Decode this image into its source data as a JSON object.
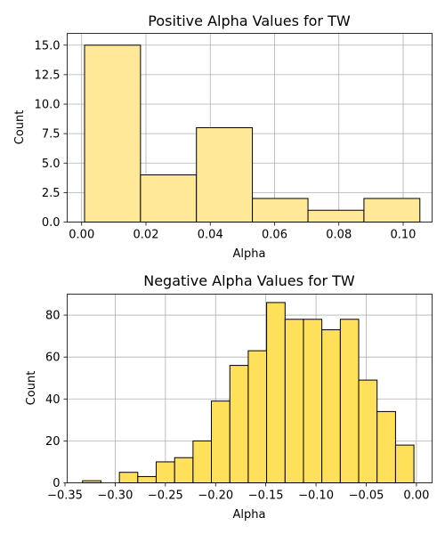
{
  "chart_data": [
    {
      "type": "bar",
      "title": "Positive Alpha Values for TW",
      "xlabel": "Alpha",
      "ylabel": "Count",
      "bar_color": "#ffe897",
      "grid": true,
      "xlim": [
        -0.0045,
        0.109
      ],
      "ylim": [
        0,
        16
      ],
      "xticks": [
        "0.00",
        "0.02",
        "0.04",
        "0.06",
        "0.08",
        "0.10"
      ],
      "xtick_values": [
        0.0,
        0.02,
        0.04,
        0.06,
        0.08,
        0.1
      ],
      "yticks": [
        "0.0",
        "2.5",
        "5.0",
        "7.5",
        "10.0",
        "12.5",
        "15.0"
      ],
      "ytick_values": [
        0,
        2.5,
        5,
        7.5,
        10,
        12.5,
        15
      ],
      "bins": [
        {
          "x0": 0.0009,
          "x1": 0.0183,
          "count": 15
        },
        {
          "x0": 0.0183,
          "x1": 0.0357,
          "count": 4
        },
        {
          "x0": 0.0357,
          "x1": 0.0531,
          "count": 8
        },
        {
          "x0": 0.0531,
          "x1": 0.0704,
          "count": 2
        },
        {
          "x0": 0.0704,
          "x1": 0.0878,
          "count": 1
        },
        {
          "x0": 0.0878,
          "x1": 0.1052,
          "count": 2
        }
      ]
    },
    {
      "type": "bar",
      "title": "Negative Alpha Values for TW",
      "xlabel": "Alpha",
      "ylabel": "Count",
      "bar_color": "#ffe05a",
      "grid": true,
      "xlim": [
        -0.3478,
        0.0156
      ],
      "ylim": [
        0,
        90
      ],
      "xticks": [
        "−0.35",
        "−0.30",
        "−0.25",
        "−0.20",
        "−0.15",
        "−0.10",
        "−0.05",
        "0.00"
      ],
      "xtick_values": [
        -0.35,
        -0.3,
        -0.25,
        -0.2,
        -0.15,
        -0.1,
        -0.05,
        0.0
      ],
      "yticks": [
        "0",
        "20",
        "40",
        "60",
        "80"
      ],
      "ytick_values": [
        0,
        20,
        40,
        60,
        80
      ],
      "bins": [
        {
          "x0": -0.3325,
          "x1": -0.3142,
          "count": 1
        },
        {
          "x0": -0.3142,
          "x1": -0.2958,
          "count": 0
        },
        {
          "x0": -0.2958,
          "x1": -0.2775,
          "count": 5
        },
        {
          "x0": -0.2775,
          "x1": -0.2592,
          "count": 3
        },
        {
          "x0": -0.2592,
          "x1": -0.2408,
          "count": 10
        },
        {
          "x0": -0.2408,
          "x1": -0.2225,
          "count": 12
        },
        {
          "x0": -0.2225,
          "x1": -0.2042,
          "count": 20
        },
        {
          "x0": -0.2042,
          "x1": -0.1858,
          "count": 39
        },
        {
          "x0": -0.1858,
          "x1": -0.1675,
          "count": 56
        },
        {
          "x0": -0.1675,
          "x1": -0.1492,
          "count": 63
        },
        {
          "x0": -0.1492,
          "x1": -0.1308,
          "count": 86
        },
        {
          "x0": -0.1308,
          "x1": -0.1125,
          "count": 78
        },
        {
          "x0": -0.1125,
          "x1": -0.0942,
          "count": 78
        },
        {
          "x0": -0.0942,
          "x1": -0.0758,
          "count": 73
        },
        {
          "x0": -0.0758,
          "x1": -0.0575,
          "count": 78
        },
        {
          "x0": -0.0575,
          "x1": -0.0392,
          "count": 49
        },
        {
          "x0": -0.0392,
          "x1": -0.0208,
          "count": 34
        },
        {
          "x0": -0.0208,
          "x1": -0.0025,
          "count": 18
        }
      ]
    }
  ]
}
